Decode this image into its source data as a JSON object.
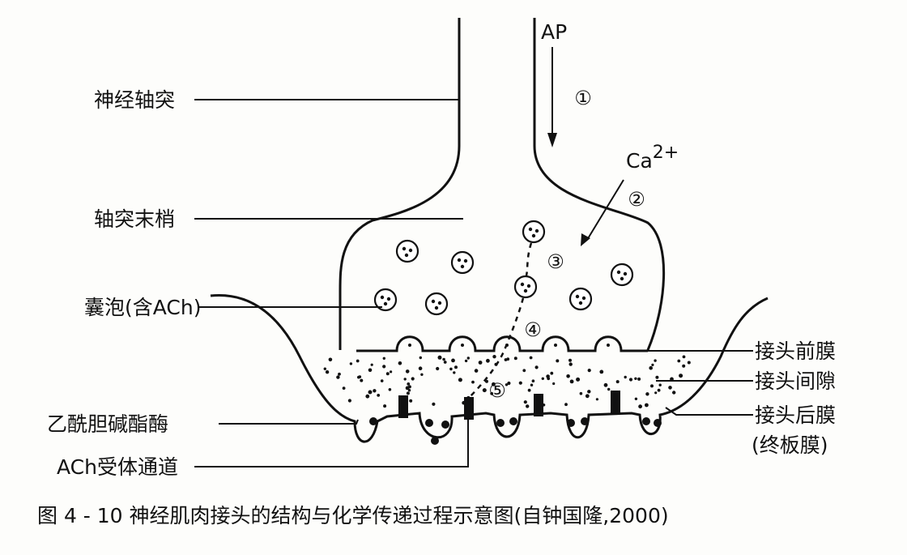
{
  "labels": {
    "axon": "神经轴突",
    "terminal": "轴突末梢",
    "vesicle": "囊泡(含ACh)",
    "ache": "乙酰胆碱酯酶",
    "receptor": "ACh受体通道",
    "pre_membrane": "接头前膜",
    "cleft": "接头间隙",
    "post_membrane": "接头后膜",
    "endplate": "(终板膜)",
    "ap": "AP",
    "ca_base": "Ca",
    "ca_sup": "2+"
  },
  "steps": [
    "①",
    "②",
    "③",
    "④",
    "⑤"
  ],
  "caption": "图 4 - 10   神经肌肉接头的结构与化学传递过程示意图(自钟国隆,2000)"
}
